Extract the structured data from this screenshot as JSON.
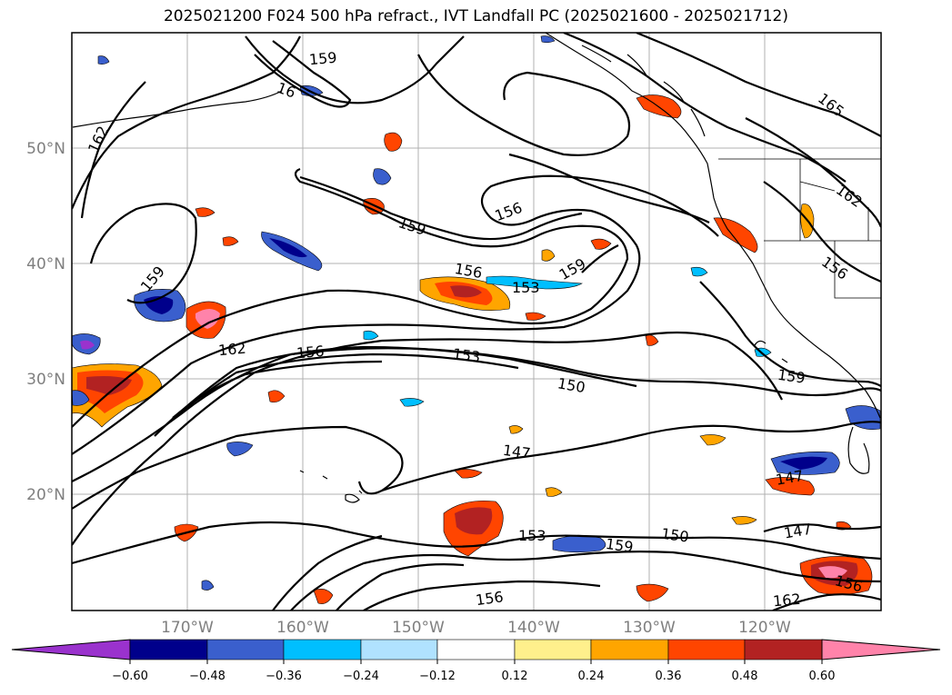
{
  "title": "2025021200 F024 500 hPa refract., IVT Landfall PC (2025021600 - 2025021712)",
  "lat_labels": [
    "50°N",
    "40°N",
    "30°N",
    "20°N"
  ],
  "lon_labels": [
    "170°W",
    "160°W",
    "150°W",
    "140°W",
    "130°W",
    "120°W"
  ],
  "colorbar": {
    "ticks": [
      "−0.60",
      "−0.48",
      "−0.36",
      "−0.24",
      "−0.12",
      "0.12",
      "0.24",
      "0.36",
      "0.48",
      "0.60"
    ],
    "colors": [
      "#9a32cd",
      "#00008b",
      "#3a5fcd",
      "#00bfff",
      "#b0e2ff",
      "#ffffff",
      "#fff08c",
      "#ffa500",
      "#ff4500",
      "#b22222",
      "#ff83aa"
    ]
  },
  "contour_labels": [
    "159",
    "16",
    "162",
    "159",
    "156",
    "159",
    "156",
    "153",
    "159",
    "162",
    "156",
    "153",
    "150",
    "159",
    "147",
    "147",
    "147",
    "153",
    "159",
    "150",
    "156",
    "156",
    "162",
    "165",
    "162",
    "156"
  ],
  "colors": {
    "contour": "#000000",
    "grid": "#b0b0b0",
    "tick_text": "#7f7f7f"
  }
}
